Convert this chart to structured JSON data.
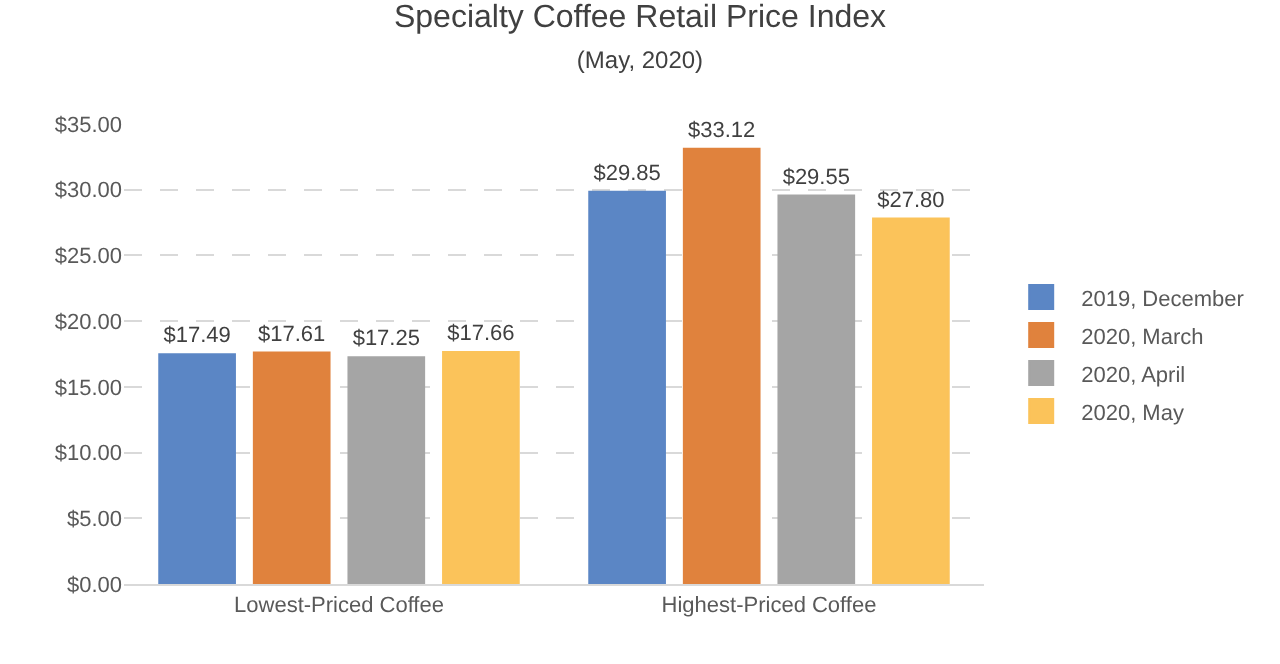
{
  "chart_data": {
    "type": "bar",
    "title": "Specialty Coffee Retail Price Index",
    "subtitle": "(May, 2020)",
    "categories": [
      "Lowest-Priced Coffee",
      "Highest-Priced Coffee"
    ],
    "series": [
      {
        "name": "2019, December",
        "color": "#5b86c5",
        "values": [
          17.49,
          29.85
        ]
      },
      {
        "name": "2020, March",
        "color": "#e0823d",
        "values": [
          17.61,
          33.12
        ]
      },
      {
        "name": "2020, April",
        "color": "#a5a5a5",
        "values": [
          17.25,
          29.55
        ]
      },
      {
        "name": "2020, May",
        "color": "#fbc35a",
        "values": [
          17.66,
          27.8
        ]
      }
    ],
    "value_labels": [
      [
        "$17.49",
        "$29.85"
      ],
      [
        "$17.61",
        "$33.12"
      ],
      [
        "$17.25",
        "$29.55"
      ],
      [
        "$17.66",
        "$27.80"
      ]
    ],
    "ylim": [
      0,
      35
    ],
    "yticks": [
      {
        "value": 0,
        "label": "$0.00"
      },
      {
        "value": 5,
        "label": "$5.00"
      },
      {
        "value": 10,
        "label": "$10.00"
      },
      {
        "value": 15,
        "label": "$15.00"
      },
      {
        "value": 20,
        "label": "$20.00"
      },
      {
        "value": 25,
        "label": "$25.00"
      },
      {
        "value": 30,
        "label": "$30.00"
      },
      {
        "value": 35,
        "label": "$35.00"
      }
    ],
    "grid": "y",
    "legend": "right"
  }
}
